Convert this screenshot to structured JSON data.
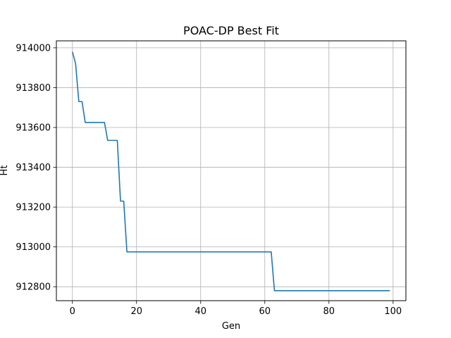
{
  "chart_data": {
    "type": "line",
    "title": "POAC-DP Best Fit",
    "xlabel": "Gen",
    "ylabel": "Ht",
    "xlim": [
      -5,
      104
    ],
    "ylim": [
      912730,
      914035
    ],
    "grid": true,
    "x_ticks": [
      0,
      20,
      40,
      60,
      80,
      100
    ],
    "y_ticks": [
      912800,
      913000,
      913200,
      913400,
      913600,
      913800,
      914000
    ],
    "x_tick_labels": [
      "0",
      "20",
      "40",
      "60",
      "80",
      "100"
    ],
    "y_tick_labels": [
      "912800",
      "913000",
      "913200",
      "913400",
      "913600",
      "913800",
      "914000"
    ],
    "series": [
      {
        "color": "#1f77b4",
        "x": [
          0,
          1,
          2,
          3,
          4,
          5,
          6,
          7,
          8,
          9,
          10,
          11,
          12,
          13,
          14,
          15,
          16,
          17,
          18,
          20,
          30,
          40,
          50,
          60,
          61,
          62,
          63,
          64,
          70,
          80,
          90,
          99
        ],
        "y": [
          913980,
          913920,
          913730,
          913730,
          913625,
          913625,
          913625,
          913625,
          913625,
          913625,
          913625,
          913535,
          913535,
          913535,
          913535,
          913230,
          913230,
          912975,
          912975,
          912975,
          912975,
          912975,
          912975,
          912975,
          912975,
          912975,
          912780,
          912780,
          912780,
          912780,
          912780,
          912780
        ]
      }
    ]
  }
}
